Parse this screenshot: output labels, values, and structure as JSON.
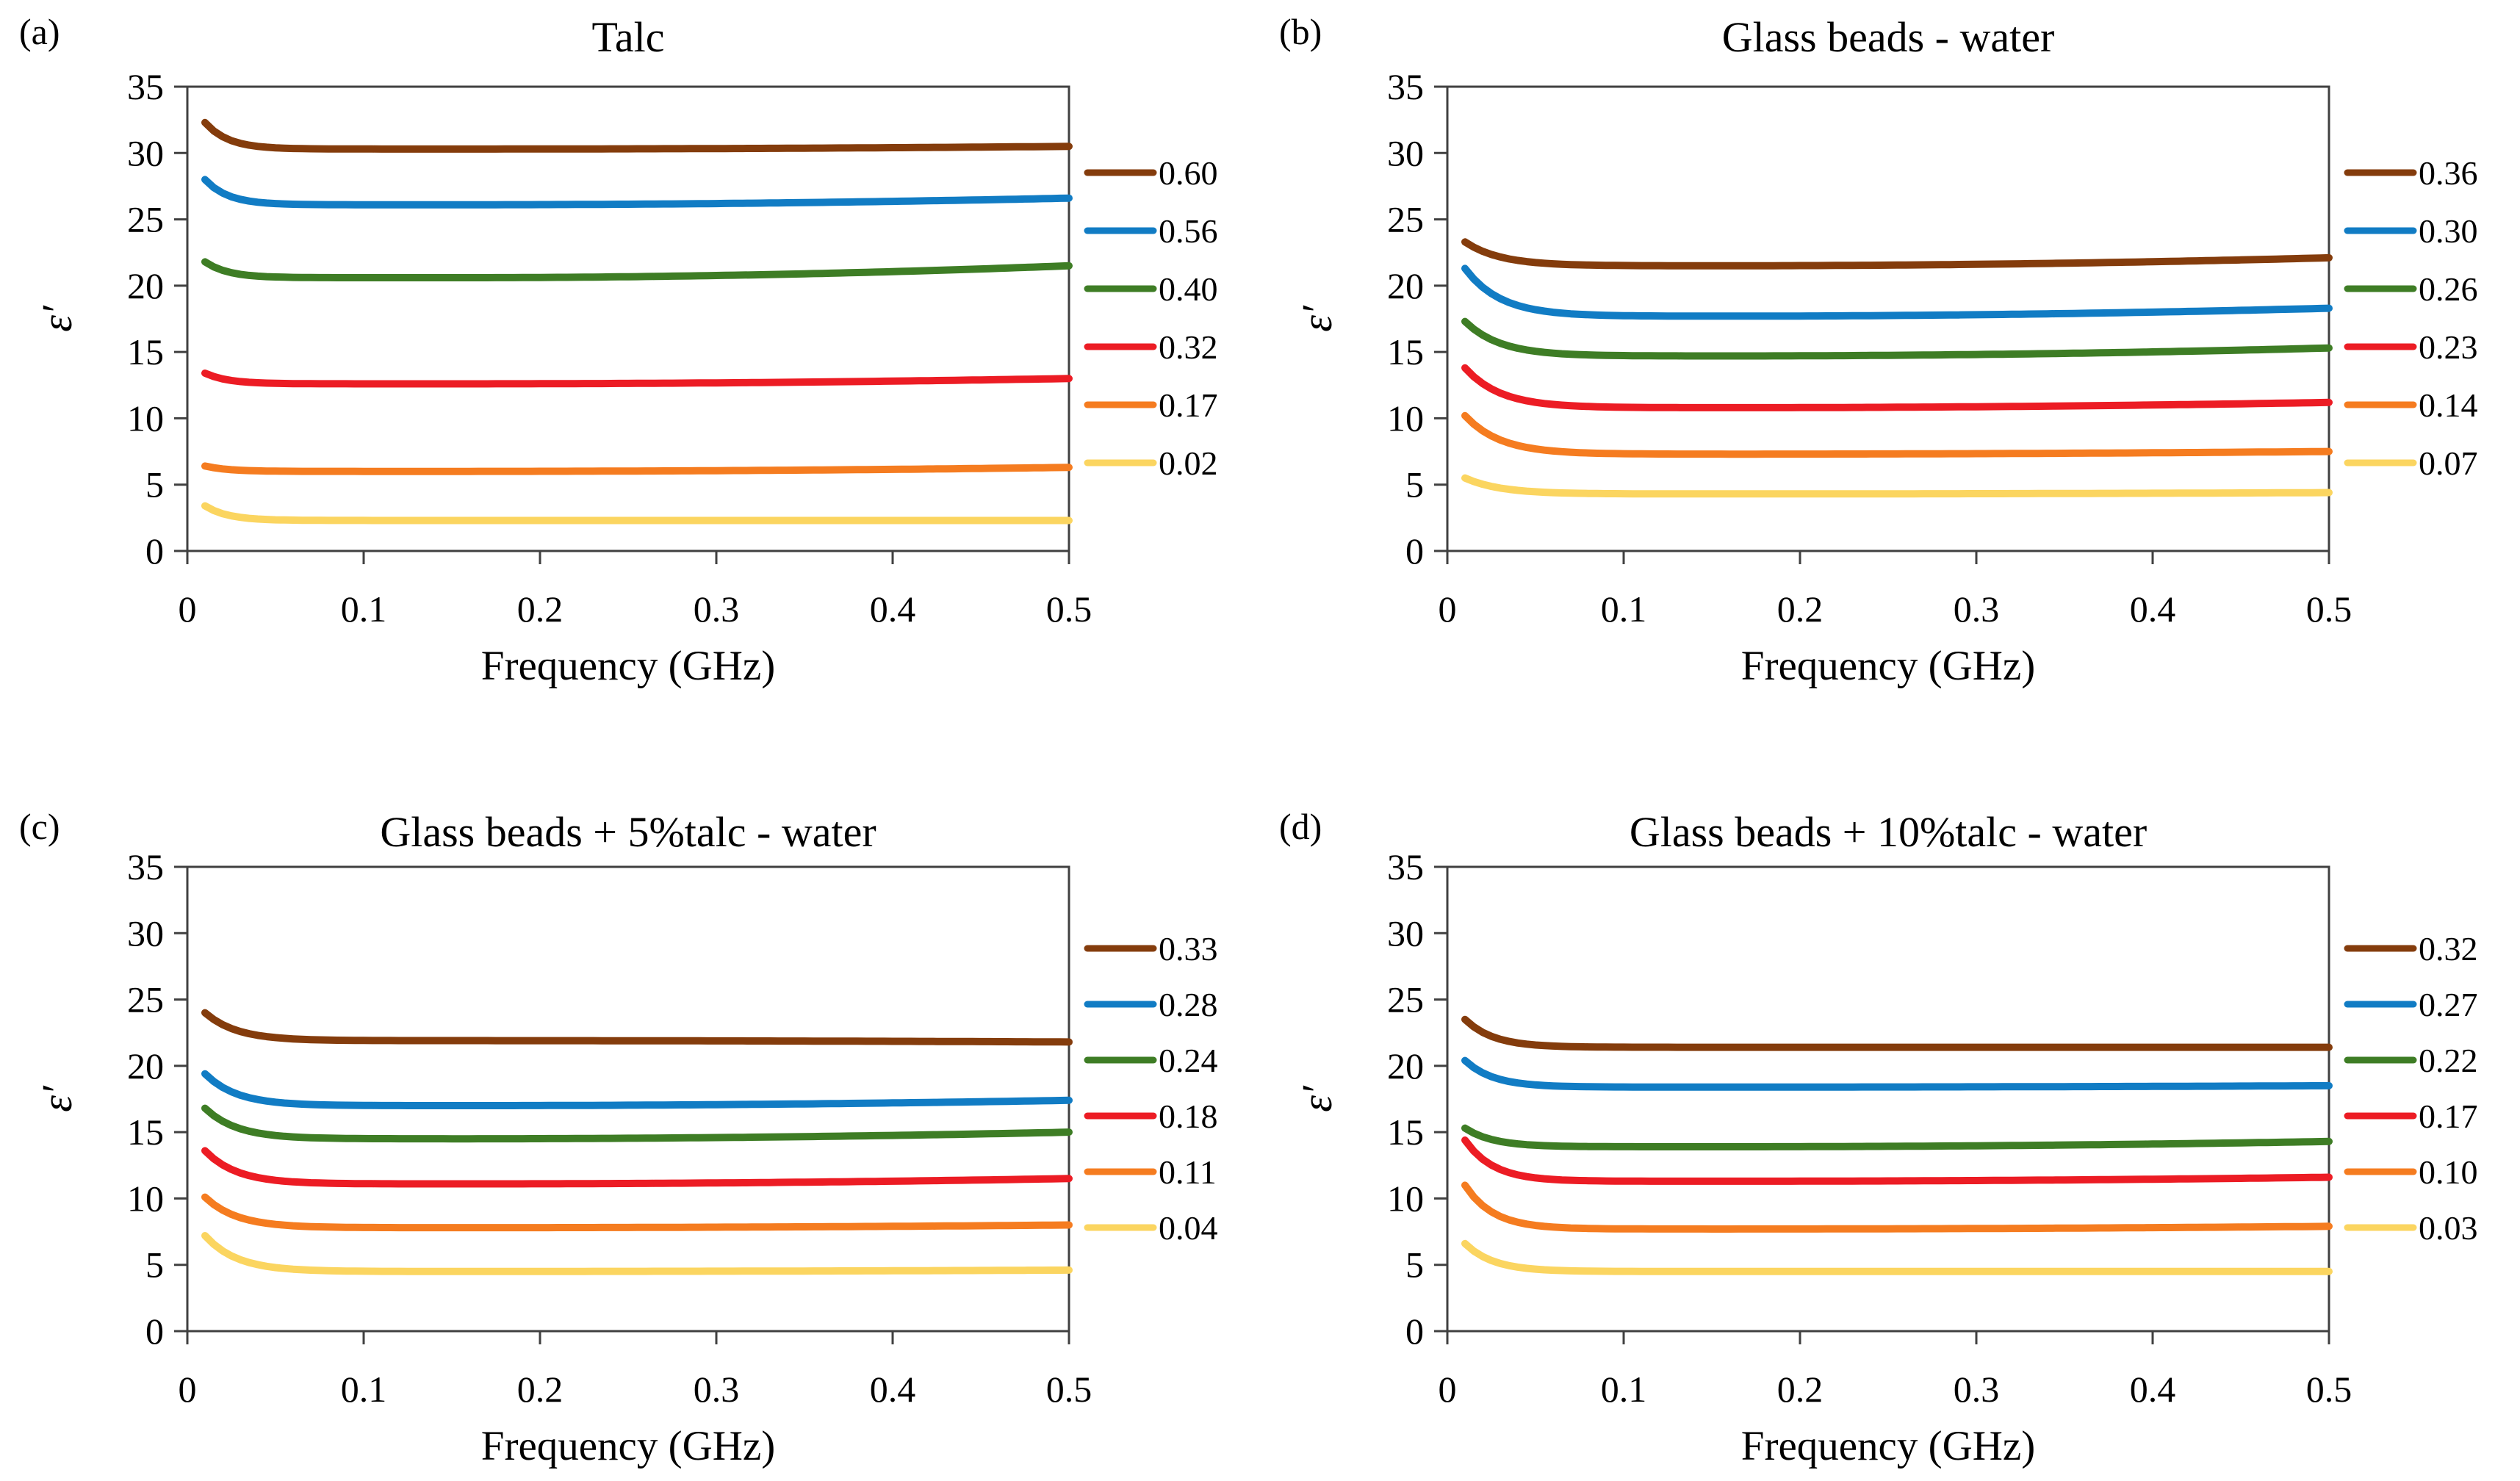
{
  "styles": {
    "axis_color": "#404040",
    "text_color": "#000000",
    "background": "#ffffff",
    "series_palette": [
      "#843C0C",
      "#117CC4",
      "#3E7D25",
      "#EC1C24",
      "#F57C20",
      "#FBD560"
    ]
  },
  "chart_data": [
    {
      "type": "line",
      "panel_label": "(a)",
      "title": "Talc",
      "xlabel": "Frequency (GHz)",
      "ylabel": "ε′",
      "xlim": [
        0,
        0.5
      ],
      "ylim": [
        0,
        35
      ],
      "xticks": [
        "0",
        "0.1",
        "0.2",
        "0.3",
        "0.4",
        "0.5"
      ],
      "yticks": [
        0,
        5,
        10,
        15,
        20,
        25,
        30,
        35
      ],
      "legend_position": "right",
      "grid": false,
      "x_range_of_data_GHz": [
        0.01,
        0.5
      ],
      "shape": {
        "decay_tau": 0.013,
        "rise_start_x": 0.15
      },
      "series": [
        {
          "legend": "0.60",
          "color": "#843C0C",
          "y_start": 32.3,
          "y_plateau": 30.3,
          "y_end": 30.5
        },
        {
          "legend": "0.56",
          "color": "#117CC4",
          "y_start": 28.0,
          "y_plateau": 26.1,
          "y_end": 26.6
        },
        {
          "legend": "0.40",
          "color": "#3E7D25",
          "y_start": 21.8,
          "y_plateau": 20.6,
          "y_end": 21.5
        },
        {
          "legend": "0.32",
          "color": "#EC1C24",
          "y_start": 13.4,
          "y_plateau": 12.6,
          "y_end": 13.0
        },
        {
          "legend": "0.17",
          "color": "#F57C20",
          "y_start": 6.4,
          "y_plateau": 6.0,
          "y_end": 6.3
        },
        {
          "legend": "0.02",
          "color": "#FBD560",
          "y_start": 3.4,
          "y_plateau": 2.3,
          "y_end": 2.3
        }
      ]
    },
    {
      "type": "line",
      "panel_label": "(b)",
      "title": "Glass beads - water",
      "xlabel": "Frequency (GHz)",
      "ylabel": "ε′",
      "xlim": [
        0,
        0.5
      ],
      "ylim": [
        0,
        35
      ],
      "xticks": [
        "0",
        "0.1",
        "0.2",
        "0.3",
        "0.4",
        "0.5"
      ],
      "yticks": [
        0,
        5,
        10,
        15,
        20,
        25,
        30,
        35
      ],
      "legend_position": "right",
      "grid": false,
      "x_range_of_data_GHz": [
        0.01,
        0.5
      ],
      "shape": {
        "decay_tau": 0.02,
        "rise_start_x": 0.15
      },
      "series": [
        {
          "legend": "0.36",
          "color": "#843C0C",
          "y_start": 23.3,
          "y_plateau": 21.5,
          "y_end": 22.1
        },
        {
          "legend": "0.30",
          "color": "#117CC4",
          "y_start": 21.3,
          "y_plateau": 17.7,
          "y_end": 18.3
        },
        {
          "legend": "0.26",
          "color": "#3E7D25",
          "y_start": 17.3,
          "y_plateau": 14.7,
          "y_end": 15.3
        },
        {
          "legend": "0.23",
          "color": "#EC1C24",
          "y_start": 13.8,
          "y_plateau": 10.8,
          "y_end": 11.2
        },
        {
          "legend": "0.14",
          "color": "#F57C20",
          "y_start": 10.2,
          "y_plateau": 7.3,
          "y_end": 7.5
        },
        {
          "legend": "0.07",
          "color": "#FBD560",
          "y_start": 5.5,
          "y_plateau": 4.3,
          "y_end": 4.4
        }
      ]
    },
    {
      "type": "line",
      "panel_label": "(c)",
      "title": "Glass beads + 5%talc - water",
      "xlabel": "Frequency (GHz)",
      "ylabel": "ε′",
      "xlim": [
        0,
        0.5
      ],
      "ylim": [
        0,
        35
      ],
      "xticks": [
        "0",
        "0.1",
        "0.2",
        "0.3",
        "0.4",
        "0.5"
      ],
      "yticks": [
        0,
        5,
        10,
        15,
        20,
        25,
        30,
        35
      ],
      "legend_position": "right",
      "grid": false,
      "x_range_of_data_GHz": [
        0.01,
        0.5
      ],
      "shape": {
        "decay_tau": 0.018,
        "rise_start_x": 0.15
      },
      "series": [
        {
          "legend": "0.33",
          "color": "#843C0C",
          "y_start": 24.0,
          "y_plateau": 21.9,
          "y_end": 21.8
        },
        {
          "legend": "0.28",
          "color": "#117CC4",
          "y_start": 19.4,
          "y_plateau": 17.0,
          "y_end": 17.4
        },
        {
          "legend": "0.24",
          "color": "#3E7D25",
          "y_start": 16.8,
          "y_plateau": 14.5,
          "y_end": 15.0
        },
        {
          "legend": "0.18",
          "color": "#EC1C24",
          "y_start": 13.6,
          "y_plateau": 11.1,
          "y_end": 11.5
        },
        {
          "legend": "0.11",
          "color": "#F57C20",
          "y_start": 10.1,
          "y_plateau": 7.8,
          "y_end": 8.0
        },
        {
          "legend": "0.04",
          "color": "#FBD560",
          "y_start": 7.2,
          "y_plateau": 4.5,
          "y_end": 4.6
        }
      ]
    },
    {
      "type": "line",
      "panel_label": "(d)",
      "title": "Glass beads + 10%talc - water",
      "xlabel": "Frequency (GHz)",
      "ylabel": "ε′",
      "xlim": [
        0,
        0.5
      ],
      "ylim": [
        0,
        35
      ],
      "xticks": [
        "0",
        "0.1",
        "0.2",
        "0.3",
        "0.4",
        "0.5"
      ],
      "yticks": [
        0,
        5,
        10,
        15,
        20,
        25,
        30,
        35
      ],
      "legend_position": "right",
      "grid": false,
      "x_range_of_data_GHz": [
        0.01,
        0.5
      ],
      "shape": {
        "decay_tau": 0.016,
        "rise_start_x": 0.15
      },
      "series": [
        {
          "legend": "0.32",
          "color": "#843C0C",
          "y_start": 23.5,
          "y_plateau": 21.4,
          "y_end": 21.4
        },
        {
          "legend": "0.27",
          "color": "#117CC4",
          "y_start": 20.4,
          "y_plateau": 18.4,
          "y_end": 18.5
        },
        {
          "legend": "0.22",
          "color": "#3E7D25",
          "y_start": 15.3,
          "y_plateau": 13.9,
          "y_end": 14.3
        },
        {
          "legend": "0.17",
          "color": "#EC1C24",
          "y_start": 14.4,
          "y_plateau": 11.3,
          "y_end": 11.6
        },
        {
          "legend": "0.10",
          "color": "#F57C20",
          "y_start": 11.0,
          "y_plateau": 7.7,
          "y_end": 7.9
        },
        {
          "legend": "0.03",
          "color": "#FBD560",
          "y_start": 6.6,
          "y_plateau": 4.5,
          "y_end": 4.5
        }
      ]
    }
  ]
}
